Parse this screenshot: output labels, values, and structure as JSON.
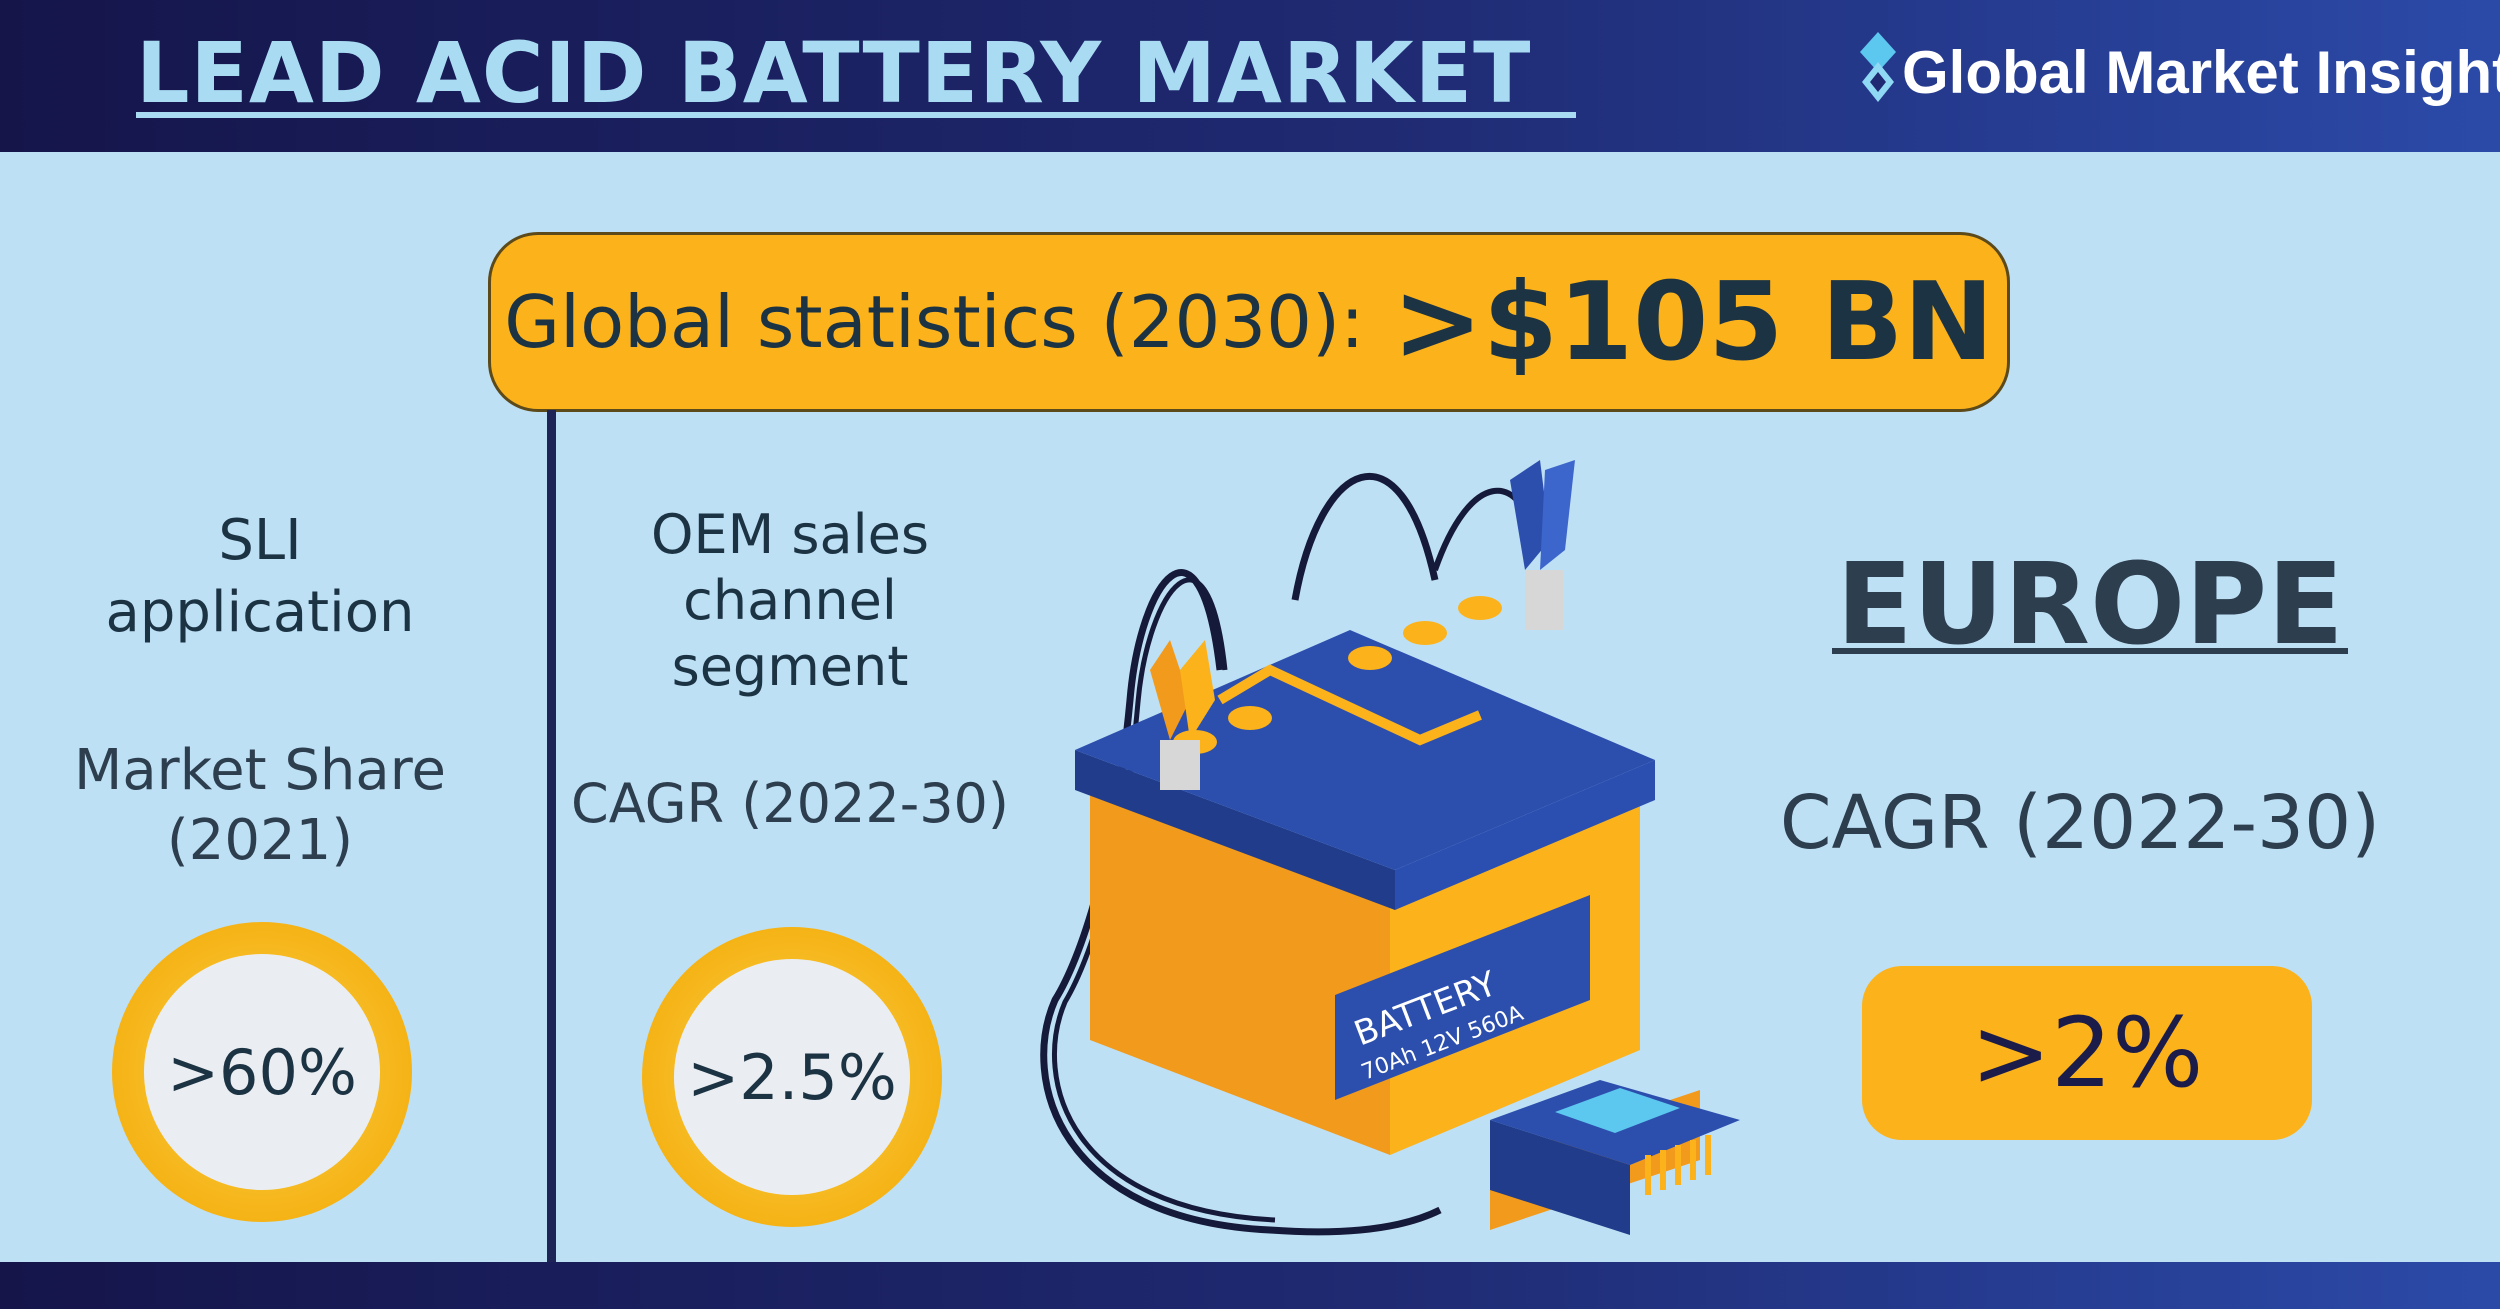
{
  "header": {
    "title": "LEAD ACID BATTERY MARKET",
    "brand": "Global Market Insights",
    "brand_icon": "diamond-logo-icon"
  },
  "global_stats": {
    "label": "Global statistics (2030):",
    "value": ">$105 BN"
  },
  "segments": [
    {
      "title_lines": [
        "SLI",
        "application"
      ],
      "metric_lines": [
        "Market Share",
        "(2021)"
      ],
      "value": ">60%"
    },
    {
      "title_lines": [
        "OEM sales",
        "channel",
        "segment"
      ],
      "metric": "CAGR (2022-30)",
      "value": ">2.5%"
    }
  ],
  "region": {
    "name": "EUROPE",
    "metric": "CAGR (2022-30)",
    "value": ">2%"
  },
  "illustration": {
    "battery_label": "BATTERY",
    "battery_spec": "70Ah 12V 560A"
  },
  "colors": {
    "header_dark": "#15154a",
    "accent_yellow": "#fbb21b",
    "background": "#bee0f5",
    "text_dark": "#1c3344"
  }
}
